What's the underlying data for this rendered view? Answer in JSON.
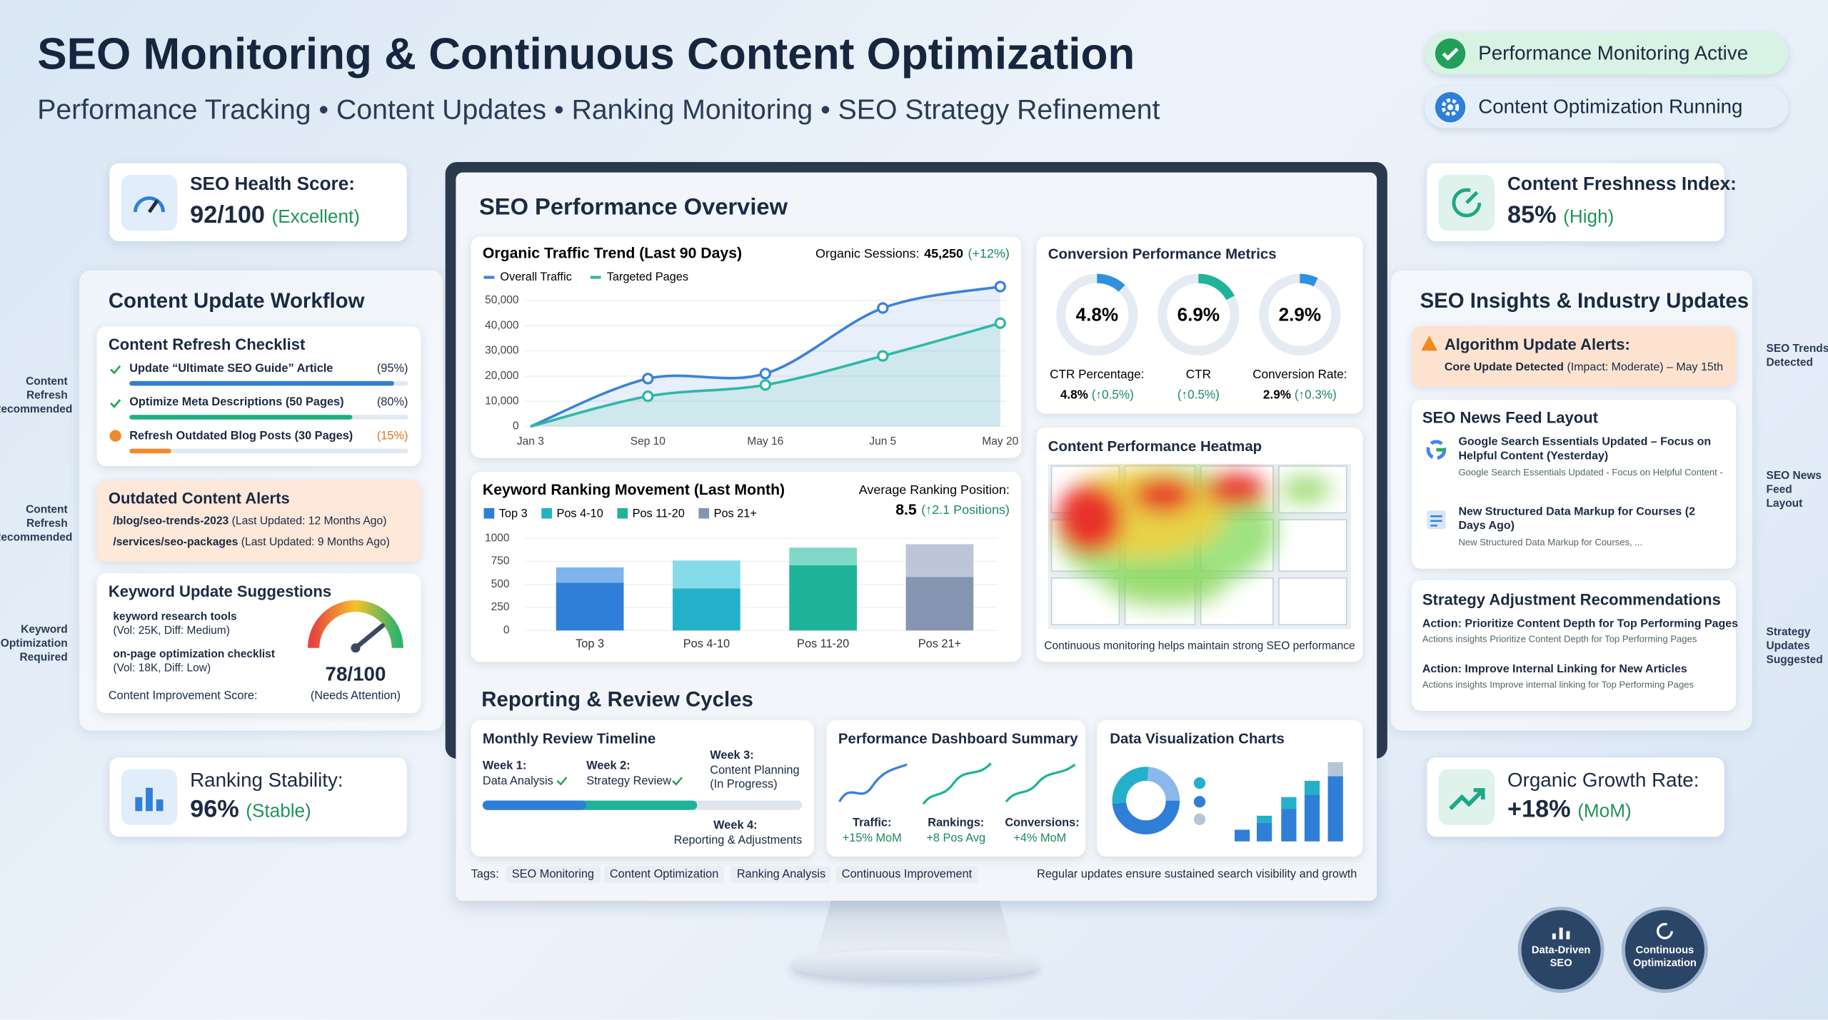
{
  "header": {
    "title": "SEO Monitoring & Continuous Content Optimization",
    "subtitle": "Performance Tracking • Content Updates • Ranking Monitoring • SEO Strategy Refinement"
  },
  "status": [
    "Performance Monitoring Active",
    "Content Optimization Running"
  ],
  "seo_health": {
    "label": "SEO Health Score:",
    "value": "92/100",
    "note": "(Excellent)"
  },
  "workflow": {
    "title": "Content Update Workflow",
    "checklist": {
      "title": "Content Refresh Checklist",
      "items": [
        {
          "text": "Update “Ultimate SEO Guide” Article",
          "progress": 95,
          "progress_label": "(95%)",
          "color": "#2f7fd8"
        },
        {
          "text": "Optimize Meta Descriptions (50 Pages)",
          "progress": 80,
          "progress_label": "(80%)",
          "color": "#22b07d"
        },
        {
          "text": "Refresh Outdated Blog Posts (30 Pages)",
          "progress": 15,
          "progress_label": "(15%)",
          "color": "#f08a2c"
        }
      ]
    },
    "alerts": {
      "title": "Outdated Content Alerts",
      "items": [
        {
          "path": "/blog/seo-trends-2023",
          "note": "(Last Updated: 12 Months Ago)"
        },
        {
          "path": "/services/seo-packages",
          "note": "(Last Updated: 9 Months Ago)"
        }
      ]
    },
    "keywords": {
      "title": "Keyword Update Suggestions",
      "items": [
        {
          "keyword": "keyword research tools",
          "meta": "(Vol: 25K, Diff: Medium)"
        },
        {
          "keyword": "on-page optimization checklist",
          "meta": "(Vol: 18K, Diff: Low)"
        }
      ],
      "score_label": "Content Improvement Score:",
      "score": 78,
      "score_max": 100,
      "score_text": "78/100",
      "score_note": "(Needs Attention)"
    },
    "side_labels": [
      "Content Refresh Recommended",
      "Content Refresh Recommended",
      "Keyword Optimization Required"
    ]
  },
  "ranking_stability": {
    "label": "Ranking Stability:",
    "value": "96%",
    "note": "(Stable)"
  },
  "overview": {
    "title": "SEO Performance Overview",
    "traffic": {
      "type": "line",
      "title": "Organic Traffic Trend (Last 90 Days)",
      "summary_label": "Organic Sessions:",
      "summary_value": "45,250",
      "summary_change": "(+12%)",
      "x": [
        "Jan 3",
        "Sep 10",
        "May 16",
        "Jun 5",
        "May 20"
      ],
      "series": [
        {
          "name": "Overall Traffic",
          "color": "#3b82d9",
          "values": [
            0,
            19000,
            21000,
            47000,
            55500
          ]
        },
        {
          "name": "Targeted Pages",
          "color": "#2fb8a6",
          "values": [
            0,
            12000,
            16500,
            28000,
            41000
          ]
        }
      ],
      "ylim": [
        0,
        55000
      ],
      "yticks": [
        0,
        {
          "value": 10000,
          "label": "10,000"
        },
        {
          "value": 20000,
          "label": "20,000"
        },
        {
          "value": 30000,
          "label": "30,000"
        },
        {
          "value": 40000,
          "label": "40,000"
        },
        {
          "value": 50000,
          "label": "50,000"
        }
      ]
    },
    "keyword_ranking": {
      "type": "bar",
      "title": "Keyword Ranking Movement (Last Month)",
      "summary_label": "Average Ranking Position:",
      "summary_value": "8.5",
      "summary_change": "(↑2.1 Positions)",
      "categories": [
        "Top 3",
        "Pos 4-10",
        "Pos 11-20",
        "Pos 21+"
      ],
      "series": [
        {
          "colors": [
            "#2f7fd8",
            "#25b0c9",
            "#1fb39a",
            "#8594b0"
          ],
          "values": [
            520,
            456,
            709,
            582
          ]
        },
        {
          "colors": [
            "#7fb3ec",
            "#86dbe8",
            "#7fd9c6",
            "#bcc6d8"
          ],
          "values": [
            165,
            304,
            191,
            355
          ]
        }
      ],
      "ylim": [
        0,
        1000
      ],
      "yticks": [
        0,
        250,
        500,
        750,
        1000
      ]
    },
    "conversion": {
      "title": "Conversion Performance Metrics",
      "metrics": [
        {
          "value": 4.8,
          "value_label": "4.8%",
          "caption": "CTR Percentage:",
          "detail": "4.8%",
          "change": "(↑0.5%)",
          "color": "#2f8fe0"
        },
        {
          "value": 6.9,
          "value_label": "6.9%",
          "caption": "CTR",
          "detail": "",
          "change": "(↑0.5%)",
          "color": "#1fb39a"
        },
        {
          "value": 2.9,
          "value_label": "2.9%",
          "caption": "Conversion Rate:",
          "detail": "2.9%",
          "change": "(↑0.3%)",
          "color": "#2f8fe0"
        }
      ]
    },
    "heatmap": {
      "title": "Content Performance Heatmap",
      "caption": "Continuous monitoring helps maintain strong SEO performance"
    }
  },
  "reporting": {
    "title": "Reporting & Review Cycles",
    "timeline": {
      "title": "Monthly Review Timeline",
      "weeks": [
        {
          "week": "Week 1:",
          "task": "Data Analysis"
        },
        {
          "week": "Week 2:",
          "task": "Strategy Review"
        },
        {
          "week": "Week 3:",
          "task": "Content Planning (In Progress)"
        },
        {
          "week": "Week 4:",
          "task": "Reporting & Adjustments"
        }
      ]
    },
    "dashboard": {
      "title": "Performance Dashboard Summary",
      "items": [
        {
          "label": "Traffic:",
          "value": "+15% MoM"
        },
        {
          "label": "Rankings:",
          "value": "+8 Pos Avg"
        },
        {
          "label": "Conversions:",
          "value": "+4% MoM"
        }
      ]
    },
    "charts": {
      "title": "Data Visualization Charts"
    },
    "tags_label": "Tags:",
    "tags": [
      "SEO Monitoring",
      "Content Optimization",
      "Ranking Analysis",
      "Continuous Improvement"
    ],
    "footer": "Regular updates ensure sustained search visibility and growth"
  },
  "freshness": {
    "label": "Content Freshness Index:",
    "value": "85%",
    "note": "(High)"
  },
  "insights": {
    "title": "SEO Insights & Industry Updates",
    "alert": {
      "title": "Algorithm Update Alerts:",
      "headline": "Core Update Detected",
      "detail": "(Impact: Moderate) – May 15th"
    },
    "news": {
      "title": "SEO News Feed Layout",
      "items": [
        {
          "title": "Google Search Essentials Updated – Focus on Helpful Content (Yesterday)",
          "body": "Google Search Essentials Updated - Focus on Helpful Content -"
        },
        {
          "title": "New Structured Data Markup for Courses (2 Days Ago)",
          "body": "New Structured Data Markup for Courses, ..."
        }
      ]
    },
    "strategy": {
      "title": "Strategy Adjustment Recommendations",
      "items": [
        {
          "action": "Action: Prioritize Content Depth for Top Performing Pages",
          "detail": "Actions insights Prioritize Content Depth for Top Performing Pages"
        },
        {
          "action": "Action: Improve Internal Linking for New Articles",
          "detail": "Actions insights Improve internal linking for Top Performing Pages"
        }
      ]
    },
    "side_labels": [
      "SEO Trends Detected",
      "SEO News Feed Layout",
      "Strategy Updates Suggested"
    ]
  },
  "growth": {
    "label": "Organic Growth Rate:",
    "value": "+18%",
    "note": "(MoM)"
  },
  "badges": [
    "Data-Driven SEO",
    "Continuous Optimization"
  ]
}
